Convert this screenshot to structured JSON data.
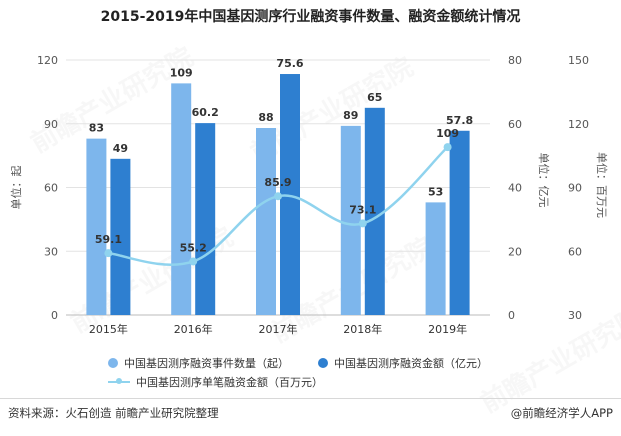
{
  "title": "2015-2019年中国基因测序行业融资事件数量、融资金额统计情况",
  "source": "资料来源：火石创造 前瞻产业研究院整理",
  "brand": "@前瞻经济学人APP",
  "watermark": "前瞻产业研究院",
  "colors": {
    "count_bar": "#7db6ec",
    "amount_bar": "#2e7fd0",
    "avg_line": "#8fd3ee",
    "grid": "#e3e3e3",
    "axis_text": "#555555"
  },
  "chart_data": {
    "type": "bar",
    "categories": [
      "2015年",
      "2016年",
      "2017年",
      "2018年",
      "2019年"
    ],
    "series": [
      {
        "name": "中国基因测序融资事件数量（起）",
        "type": "bar",
        "axis": "left",
        "values": [
          83,
          109,
          88,
          89,
          53
        ]
      },
      {
        "name": "中国基因测序融资金额（亿元）",
        "type": "bar",
        "axis": "right1",
        "values": [
          49,
          60.2,
          75.6,
          65,
          57.8
        ]
      },
      {
        "name": "中国基因测序单笔融资金额（百万元）",
        "type": "line",
        "axis": "right2",
        "values": [
          59.1,
          55.2,
          85.9,
          73.1,
          109
        ]
      }
    ],
    "axes": {
      "left": {
        "label": "单位：起",
        "min": 0,
        "max": 120,
        "ticks": [
          "0",
          "30",
          "60",
          "90",
          "120"
        ]
      },
      "right1": {
        "label": "单位：亿元",
        "min": 0,
        "max": 80,
        "ticks": [
          "0",
          "20",
          "40",
          "60",
          "80"
        ]
      },
      "right2": {
        "label": "单位：百万元",
        "min": 30,
        "max": 150,
        "ticks": [
          "30",
          "60",
          "90",
          "120",
          "150"
        ]
      }
    },
    "grid": true,
    "legend_position": "bottom"
  }
}
